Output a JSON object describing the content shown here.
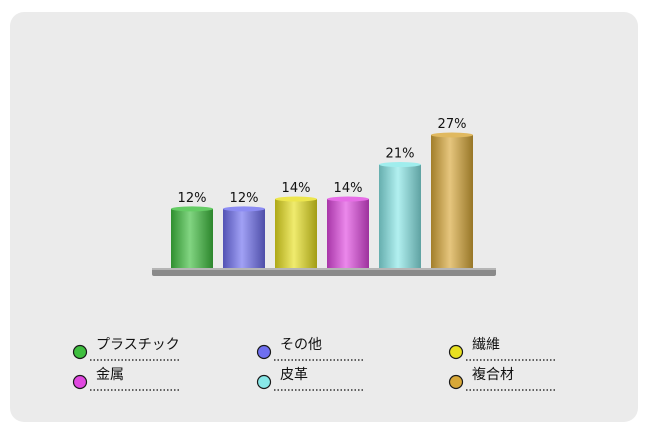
{
  "chart_data": {
    "type": "bar",
    "categories": [
      "プラスチック",
      "その他",
      "繊維",
      "金属",
      "皮革",
      "複合材"
    ],
    "values": [
      12,
      12,
      14,
      14,
      21,
      27
    ],
    "value_labels": [
      "12%",
      "12%",
      "14%",
      "14%",
      "21%",
      "27%"
    ],
    "unit": "%",
    "colors": [
      "#3fbf3f",
      "#6f6ff0",
      "#e8e020",
      "#e048e0",
      "#88e8e8",
      "#d8a838"
    ],
    "title": "",
    "xlabel": "",
    "ylabel": "",
    "ylim": [
      0,
      30
    ],
    "grid": false,
    "legend_position": "bottom"
  }
}
